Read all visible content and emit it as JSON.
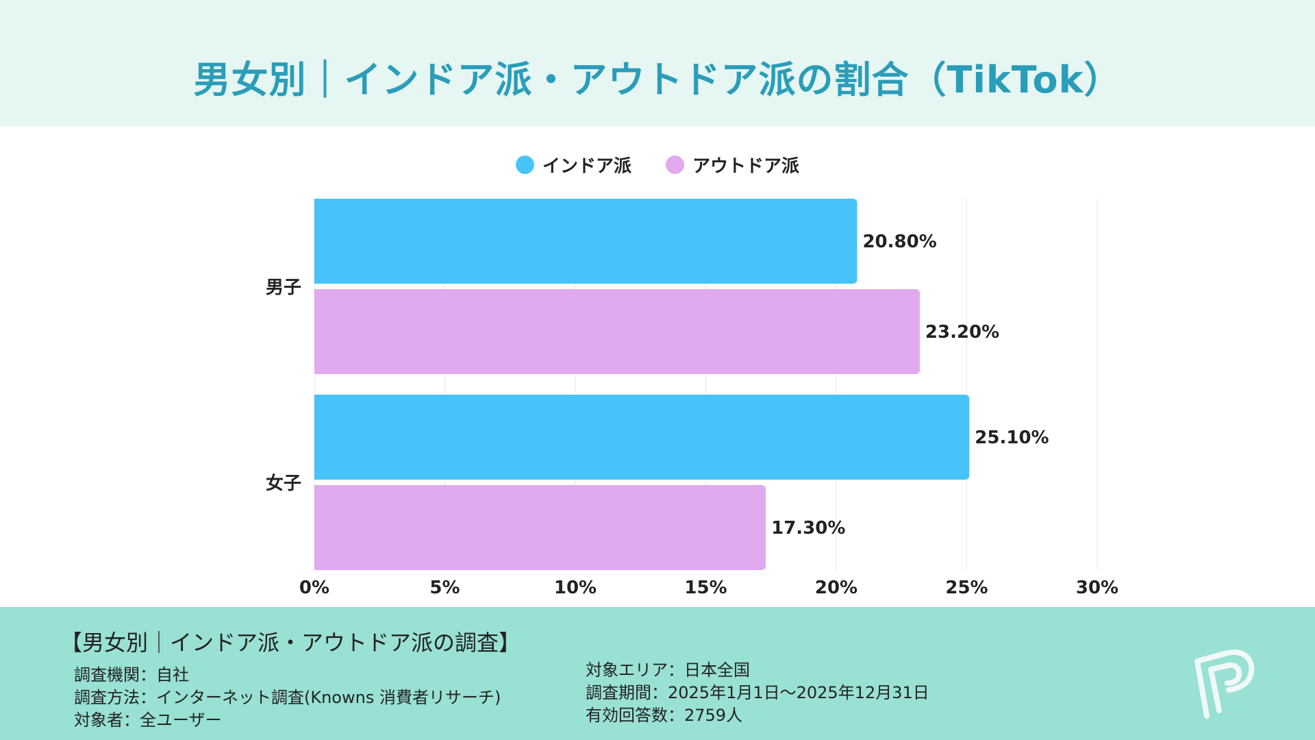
{
  "title": "男女別｜インドア派・アウトドア派の割合（TikTok）",
  "legend": [
    {
      "label": "インドア派",
      "color": "#48c3fa"
    },
    {
      "label": "アウトドア派",
      "color": "#e1aaee"
    }
  ],
  "chart_data": {
    "type": "bar",
    "orientation": "horizontal",
    "title": "男女別｜インドア派・アウトドア派の割合（TikTok）",
    "categories": [
      "男子",
      "女子"
    ],
    "series": [
      {
        "name": "インドア派",
        "values": [
          20.8,
          25.1
        ],
        "labels": [
          "20.80%",
          "25.10%"
        ],
        "color": "#48c3fa"
      },
      {
        "name": "アウトドア派",
        "values": [
          23.2,
          17.3
        ],
        "labels": [
          "23.20%",
          "17.30%"
        ],
        "color": "#e1aaee"
      }
    ],
    "xlim": [
      0,
      30
    ],
    "xticks": [
      0,
      5,
      10,
      15,
      20,
      25,
      30
    ],
    "xtick_labels": [
      "0%",
      "5%",
      "10%",
      "15%",
      "20%",
      "25%",
      "30%"
    ],
    "xlabel": "",
    "ylabel": "",
    "grid": true,
    "legend_position": "top-center"
  },
  "footer": {
    "title": "【男女別｜インドア派・アウトドア派の調査】",
    "left": [
      "調査機関：自社",
      "調査方法：インターネット調査(Knowns 消費者リサーチ)",
      "対象者：全ユーザー"
    ],
    "right": [
      "対象エリア：日本全国",
      "調査期間：2025年1月1日～2025年12月31日",
      "有効回答数：2759人"
    ]
  },
  "logo_icon": "p-logo-icon"
}
